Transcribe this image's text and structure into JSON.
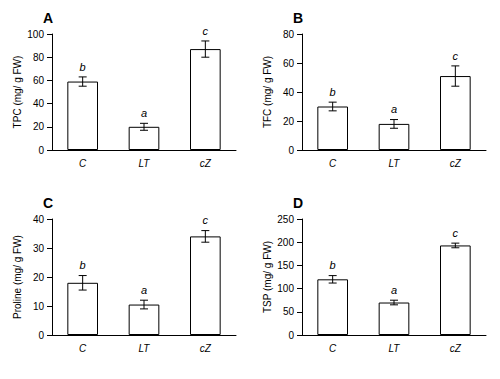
{
  "chart_data": [
    {
      "type": "bar",
      "title": "A",
      "ylabel": "TPC (mg/ g FW)",
      "categories": [
        "C",
        "LT",
        "cZ"
      ],
      "values": [
        59,
        20,
        87
      ],
      "errors": [
        4,
        3,
        7
      ],
      "annotations": [
        {
          "x": "C",
          "text": "b"
        },
        {
          "x": "LT",
          "text": "a"
        },
        {
          "x": "cZ",
          "text": "c"
        }
      ],
      "color": "#ffffff",
      "ylim": [
        0,
        100
      ],
      "yticks": [
        0,
        20,
        40,
        60,
        80,
        100
      ],
      "grid": false
    },
    {
      "type": "bar",
      "title": "B",
      "ylabel": "TFC (mg/ g FW)",
      "categories": [
        "C",
        "LT",
        "cZ"
      ],
      "values": [
        30,
        18,
        51
      ],
      "errors": [
        3,
        3,
        7
      ],
      "annotations": [
        {
          "x": "C",
          "text": "b"
        },
        {
          "x": "LT",
          "text": "a"
        },
        {
          "x": "cZ",
          "text": "c"
        }
      ],
      "color": "#ffffff",
      "ylim": [
        0,
        80
      ],
      "yticks": [
        0,
        20,
        40,
        60,
        80
      ],
      "grid": false
    },
    {
      "type": "bar",
      "title": "C",
      "ylabel": "Proline (mg/ g FW)",
      "categories": [
        "C",
        "LT",
        "cZ"
      ],
      "values": [
        18,
        10.5,
        34
      ],
      "errors": [
        2.5,
        1.5,
        2
      ],
      "annotations": [
        {
          "x": "C",
          "text": "b"
        },
        {
          "x": "LT",
          "text": "a"
        },
        {
          "x": "cZ",
          "text": "c"
        }
      ],
      "color": "#ffffff",
      "ylim": [
        0,
        40
      ],
      "yticks": [
        0,
        10,
        20,
        30,
        40
      ],
      "grid": false
    },
    {
      "type": "bar",
      "title": "D",
      "ylabel": "TSP (mg/ g FW)",
      "categories": [
        "C",
        "LT",
        "cZ"
      ],
      "values": [
        120,
        70,
        193
      ],
      "errors": [
        8,
        5,
        5
      ],
      "annotations": [
        {
          "x": "C",
          "text": "b"
        },
        {
          "x": "LT",
          "text": "a"
        },
        {
          "x": "cZ",
          "text": "c"
        }
      ],
      "color": "#ffffff",
      "ylim": [
        0,
        250
      ],
      "yticks": [
        0,
        50,
        100,
        150,
        200,
        250
      ],
      "grid": false
    }
  ]
}
